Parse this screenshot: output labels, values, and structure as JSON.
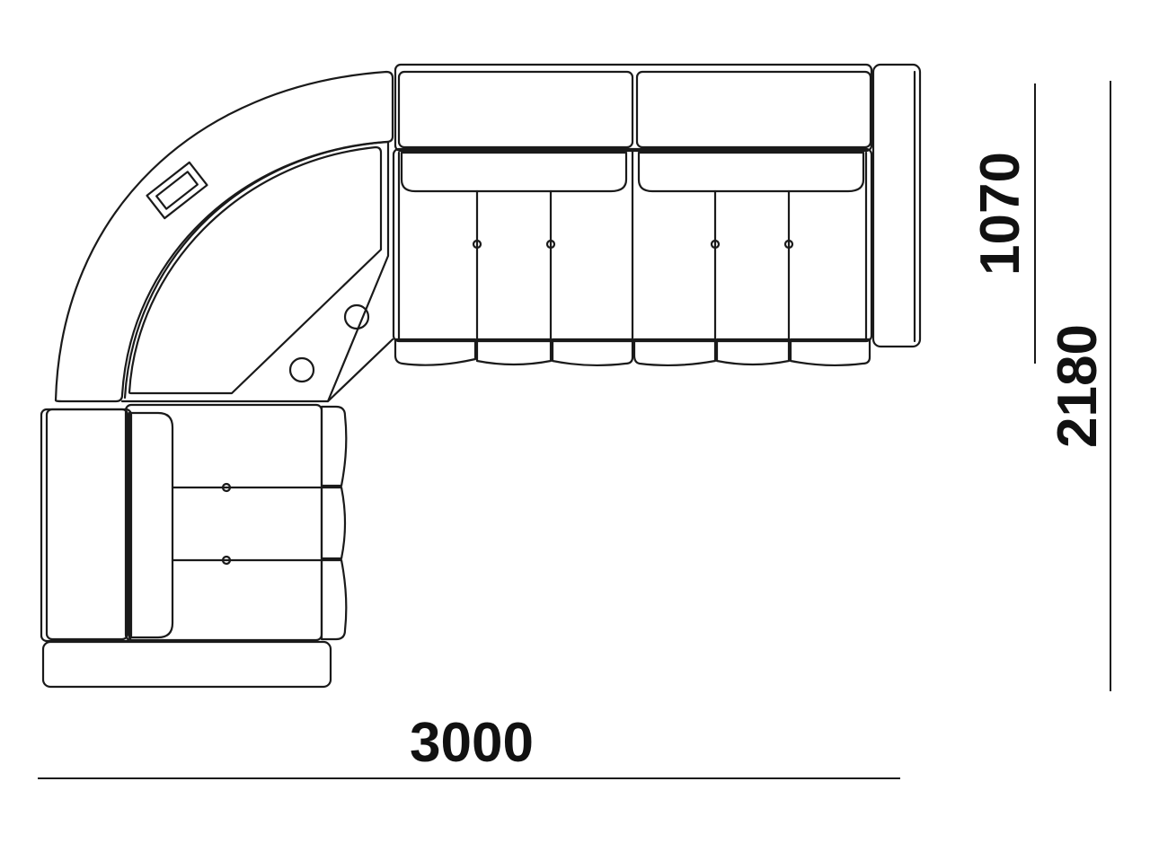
{
  "dimensions": {
    "width_label": "3000",
    "depth_label": "1070",
    "length_label": "2180"
  },
  "colors": {
    "line": "#1a1a1a",
    "background": "#ffffff"
  }
}
